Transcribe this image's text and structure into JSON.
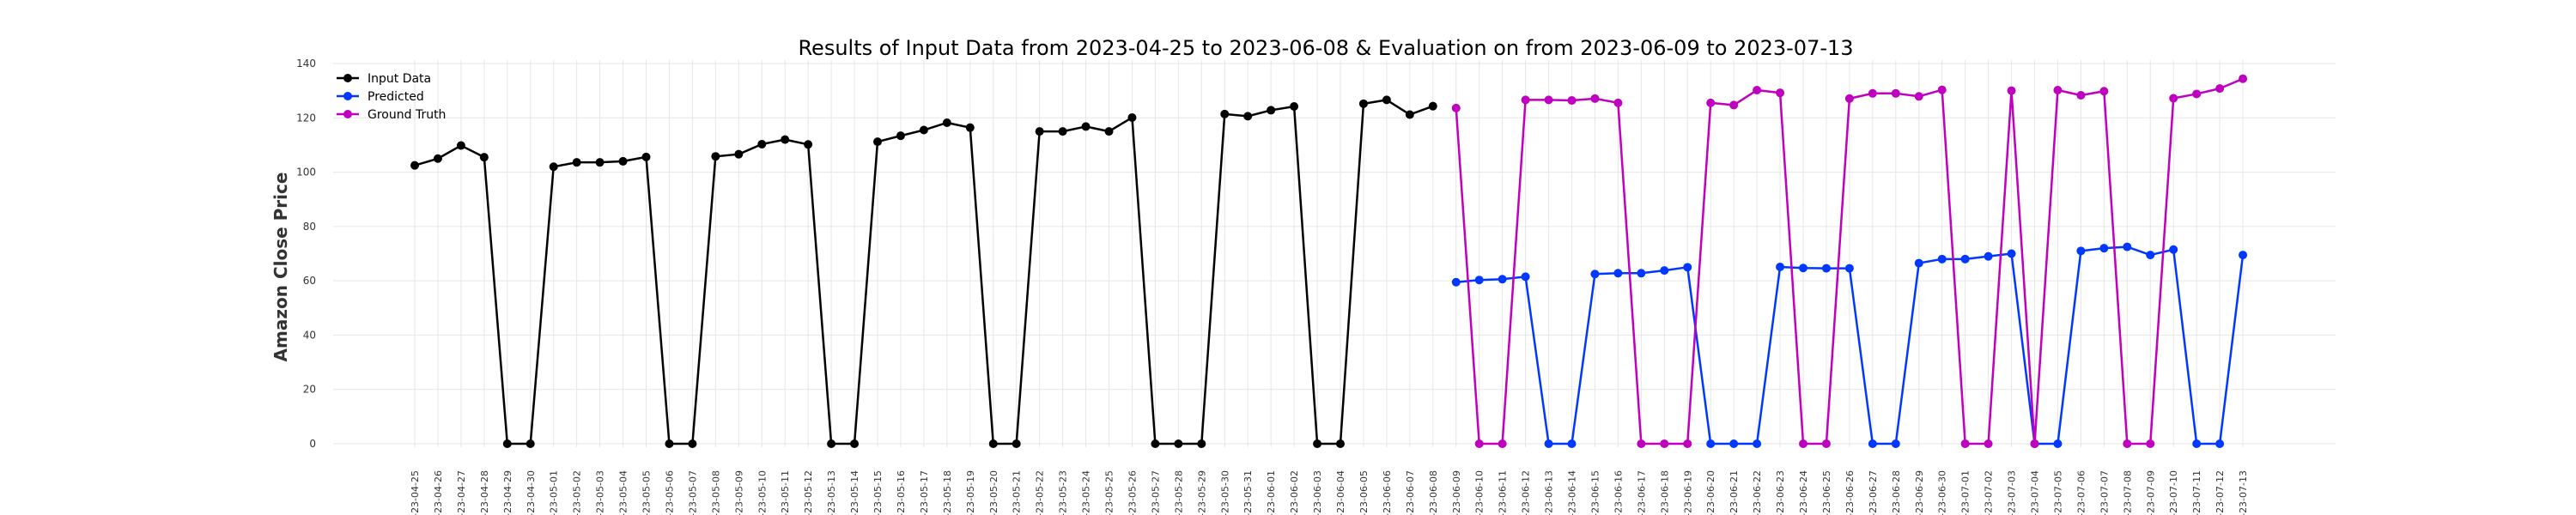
{
  "chart_data": {
    "type": "line",
    "title": "Results of Input Data from 2023-04-25 to 2023-06-08 & Evaluation on from 2023-06-09 to 2023-07-13",
    "xlabel": "",
    "ylabel": "Amazon Close Price",
    "ylim": [
      0,
      140
    ],
    "yticks": [
      0,
      20,
      40,
      60,
      80,
      100,
      120,
      140
    ],
    "grid": true,
    "legend_position": "top-left",
    "x": [
      "2023-04-25",
      "2023-04-26",
      "2023-04-27",
      "2023-04-28",
      "2023-04-29",
      "2023-04-30",
      "2023-05-01",
      "2023-05-02",
      "2023-05-03",
      "2023-05-04",
      "2023-05-05",
      "2023-05-06",
      "2023-05-07",
      "2023-05-08",
      "2023-05-09",
      "2023-05-10",
      "2023-05-11",
      "2023-05-12",
      "2023-05-13",
      "2023-05-14",
      "2023-05-15",
      "2023-05-16",
      "2023-05-17",
      "2023-05-18",
      "2023-05-19",
      "2023-05-20",
      "2023-05-21",
      "2023-05-22",
      "2023-05-23",
      "2023-05-24",
      "2023-05-25",
      "2023-05-26",
      "2023-05-27",
      "2023-05-28",
      "2023-05-29",
      "2023-05-30",
      "2023-05-31",
      "2023-06-01",
      "2023-06-02",
      "2023-06-03",
      "2023-06-04",
      "2023-06-05",
      "2023-06-06",
      "2023-06-07",
      "2023-06-08",
      "2023-06-09",
      "2023-06-10",
      "2023-06-11",
      "2023-06-12",
      "2023-06-13",
      "2023-06-14",
      "2023-06-15",
      "2023-06-16",
      "2023-06-17",
      "2023-06-18",
      "2023-06-19",
      "2023-06-20",
      "2023-06-21",
      "2023-06-22",
      "2023-06-23",
      "2023-06-24",
      "2023-06-25",
      "2023-06-26",
      "2023-06-27",
      "2023-06-28",
      "2023-06-29",
      "2023-06-30",
      "2023-07-01",
      "2023-07-02",
      "2023-07-03",
      "2023-07-04",
      "2023-07-05",
      "2023-07-06",
      "2023-07-07",
      "2023-07-08",
      "2023-07-09",
      "2023-07-10",
      "2023-07-11",
      "2023-07-12",
      "2023-07-13"
    ],
    "xtick_labels": [
      "-23-04-25",
      "-23-04-26",
      "-23-04-27",
      "-23-04-28",
      "-23-04-29",
      "-23-04-30",
      "-23-05-01",
      "-23-05-02",
      "-23-05-03",
      "-23-05-04",
      "-23-05-05",
      "-23-05-06",
      "-23-05-07",
      "-23-05-08",
      "-23-05-09",
      "-23-05-10",
      "-23-05-11",
      "-23-05-12",
      "-23-05-13",
      "-23-05-14",
      "-23-05-15",
      "-23-05-16",
      "-23-05-17",
      "-23-05-18",
      "-23-05-19",
      "-23-05-20",
      "-23-05-21",
      "-23-05-22",
      "-23-05-23",
      "-23-05-24",
      "-23-05-25",
      "-23-05-26",
      "-23-05-27",
      "-23-05-28",
      "-23-05-29",
      "-23-05-30",
      "-23-05-31",
      "-23-06-01",
      "-23-06-02",
      "-23-06-03",
      "-23-06-04",
      "-23-06-05",
      "-23-06-06",
      "-23-06-07",
      "-23-06-08",
      "-23-06-09",
      "-23-06-10",
      "-23-06-11",
      "-23-06-12",
      "-23-06-13",
      "-23-06-14",
      "-23-06-15",
      "-23-06-16",
      "-23-06-17",
      "-23-06-18",
      "-23-06-19",
      "-23-06-20",
      "-23-06-21",
      "-23-06-22",
      "-23-06-23",
      "-23-06-24",
      "-23-06-25",
      "-23-06-26",
      "-23-06-27",
      "-23-06-28",
      "-23-06-29",
      "-23-06-30",
      "-23-07-01",
      "-23-07-02",
      "-23-07-03",
      "-23-07-04",
      "-23-07-05",
      "-23-07-06",
      "-23-07-07",
      "-23-07-08",
      "-23-07-09",
      "-23-07-10",
      "-23-07-11",
      "-23-07-12",
      "-23-07-13"
    ],
    "series": [
      {
        "name": "Input Data",
        "color": "#000000",
        "x": [
          "2023-04-25",
          "2023-04-26",
          "2023-04-27",
          "2023-04-28",
          "2023-04-29",
          "2023-04-30",
          "2023-05-01",
          "2023-05-02",
          "2023-05-03",
          "2023-05-04",
          "2023-05-05",
          "2023-05-06",
          "2023-05-07",
          "2023-05-08",
          "2023-05-09",
          "2023-05-10",
          "2023-05-11",
          "2023-05-12",
          "2023-05-13",
          "2023-05-14",
          "2023-05-15",
          "2023-05-16",
          "2023-05-17",
          "2023-05-18",
          "2023-05-19",
          "2023-05-20",
          "2023-05-21",
          "2023-05-22",
          "2023-05-23",
          "2023-05-24",
          "2023-05-25",
          "2023-05-26",
          "2023-05-27",
          "2023-05-28",
          "2023-05-29",
          "2023-05-30",
          "2023-05-31",
          "2023-06-01",
          "2023-06-02",
          "2023-06-03",
          "2023-06-04",
          "2023-06-05",
          "2023-06-06",
          "2023-06-07",
          "2023-06-08"
        ],
        "values": [
          102.5,
          105.0,
          109.8,
          105.5,
          0,
          0,
          102.0,
          103.6,
          103.6,
          104.0,
          105.6,
          0,
          0,
          105.8,
          106.6,
          110.3,
          112.0,
          110.2,
          0,
          0,
          111.2,
          113.4,
          115.5,
          118.2,
          116.4,
          0,
          0,
          115.0,
          115.0,
          116.8,
          115.0,
          120.1,
          0,
          0,
          0,
          121.4,
          120.6,
          122.8,
          124.2,
          0,
          0,
          125.2,
          126.6,
          121.2,
          124.3
        ]
      },
      {
        "name": "Predicted",
        "color": "#0038ff",
        "x": [
          "2023-06-09",
          "2023-06-10",
          "2023-06-11",
          "2023-06-12",
          "2023-06-13",
          "2023-06-14",
          "2023-06-15",
          "2023-06-16",
          "2023-06-17",
          "2023-06-18",
          "2023-06-19",
          "2023-06-20",
          "2023-06-21",
          "2023-06-22",
          "2023-06-23",
          "2023-06-24",
          "2023-06-25",
          "2023-06-26",
          "2023-06-27",
          "2023-06-28",
          "2023-06-29",
          "2023-06-30",
          "2023-07-01",
          "2023-07-02",
          "2023-07-03",
          "2023-07-04",
          "2023-07-05",
          "2023-07-06",
          "2023-07-07",
          "2023-07-08",
          "2023-07-09",
          "2023-07-10",
          "2023-07-11",
          "2023-07-12",
          "2023-07-13"
        ],
        "values": [
          59.5,
          60.3,
          60.6,
          61.5,
          0,
          0,
          62.5,
          62.8,
          62.8,
          63.8,
          65.0,
          0,
          0,
          0,
          65.1,
          64.7,
          64.6,
          64.6,
          0,
          0,
          66.5,
          68.0,
          68.0,
          69.0,
          70.0,
          0,
          0,
          71.0,
          72.0,
          72.5,
          69.5,
          71.5,
          0,
          0,
          69.5
        ]
      },
      {
        "name": "Ground Truth",
        "color": "#bf00bf",
        "x": [
          "2023-06-09",
          "2023-06-10",
          "2023-06-11",
          "2023-06-12",
          "2023-06-13",
          "2023-06-14",
          "2023-06-15",
          "2023-06-16",
          "2023-06-17",
          "2023-06-18",
          "2023-06-19",
          "2023-06-20",
          "2023-06-21",
          "2023-06-22",
          "2023-06-23",
          "2023-06-24",
          "2023-06-25",
          "2023-06-26",
          "2023-06-27",
          "2023-06-28",
          "2023-06-29",
          "2023-06-30",
          "2023-07-01",
          "2023-07-02",
          "2023-07-03",
          "2023-07-04",
          "2023-07-05",
          "2023-07-06",
          "2023-07-07",
          "2023-07-08",
          "2023-07-09",
          "2023-07-10",
          "2023-07-11",
          "2023-07-12",
          "2023-07-13"
        ],
        "values": [
          123.6,
          0,
          0,
          126.6,
          126.6,
          126.4,
          127.1,
          125.5,
          0,
          0,
          0,
          125.5,
          124.7,
          130.2,
          129.2,
          0,
          0,
          127.1,
          129.0,
          129.0,
          127.9,
          130.3,
          0,
          0,
          130.0,
          0,
          130.2,
          128.3,
          129.8,
          0,
          0,
          127.2,
          128.8,
          130.8,
          134.4
        ]
      }
    ]
  }
}
